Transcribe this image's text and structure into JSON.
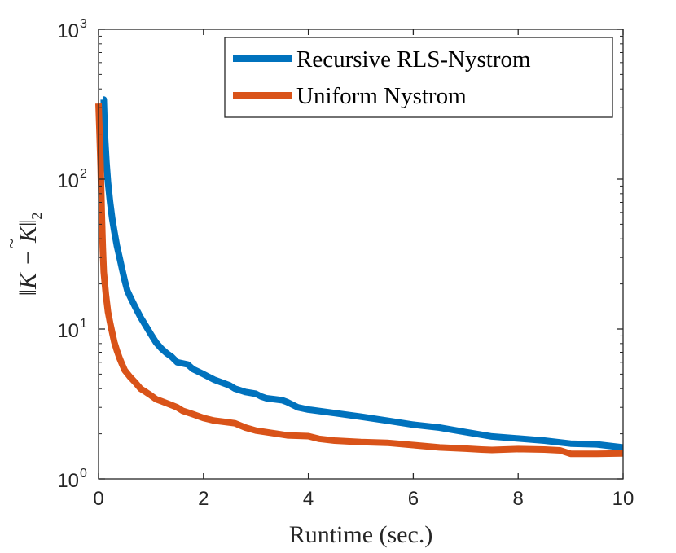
{
  "chart_data": {
    "type": "line",
    "title": "",
    "xlabel": "Runtime (sec.)",
    "ylabel_parts": {
      "K": "K",
      "minus": "−",
      "Ktilde": "K",
      "tilde": "~",
      "norm_left": "‖",
      "norm_right": "‖",
      "subscript": "2"
    },
    "xlim": [
      0,
      10
    ],
    "ylim": [
      1,
      1000
    ],
    "yscale": "log",
    "grid": false,
    "legend_position": "top-right",
    "x_ticks": [
      {
        "value": 0,
        "label": "0"
      },
      {
        "value": 2,
        "label": "2"
      },
      {
        "value": 4,
        "label": "4"
      },
      {
        "value": 6,
        "label": "6"
      },
      {
        "value": 8,
        "label": "8"
      },
      {
        "value": 10,
        "label": "10"
      }
    ],
    "y_ticks": [
      {
        "value": 1,
        "base": "10",
        "exp": "0"
      },
      {
        "value": 10,
        "base": "10",
        "exp": "1"
      },
      {
        "value": 100,
        "base": "10",
        "exp": "2"
      },
      {
        "value": 1000,
        "base": "10",
        "exp": "3"
      }
    ],
    "series": [
      {
        "name": "Recursive RLS-Nystrom",
        "color": "#0072BD",
        "points": [
          [
            0.08,
            340
          ],
          [
            0.1,
            340
          ],
          [
            0.12,
            200
          ],
          [
            0.15,
            130
          ],
          [
            0.18,
            95
          ],
          [
            0.22,
            70
          ],
          [
            0.26,
            55
          ],
          [
            0.3,
            45
          ],
          [
            0.35,
            36
          ],
          [
            0.4,
            30
          ],
          [
            0.45,
            25
          ],
          [
            0.5,
            21
          ],
          [
            0.55,
            18
          ],
          [
            0.6,
            16.5
          ],
          [
            0.7,
            14
          ],
          [
            0.8,
            12
          ],
          [
            0.9,
            10.5
          ],
          [
            1.0,
            9.2
          ],
          [
            1.1,
            8.1
          ],
          [
            1.2,
            7.4
          ],
          [
            1.3,
            6.9
          ],
          [
            1.4,
            6.5
          ],
          [
            1.5,
            6.0
          ],
          [
            1.7,
            5.8
          ],
          [
            1.8,
            5.4
          ],
          [
            2.0,
            5.0
          ],
          [
            2.2,
            4.6
          ],
          [
            2.5,
            4.2
          ],
          [
            2.6,
            4.0
          ],
          [
            2.8,
            3.8
          ],
          [
            3.0,
            3.7
          ],
          [
            3.1,
            3.55
          ],
          [
            3.2,
            3.45
          ],
          [
            3.5,
            3.35
          ],
          [
            3.6,
            3.25
          ],
          [
            3.8,
            3.0
          ],
          [
            4.0,
            2.9
          ],
          [
            4.5,
            2.75
          ],
          [
            5.0,
            2.6
          ],
          [
            5.5,
            2.45
          ],
          [
            6.0,
            2.3
          ],
          [
            6.5,
            2.2
          ],
          [
            7.0,
            2.05
          ],
          [
            7.5,
            1.92
          ],
          [
            8.0,
            1.86
          ],
          [
            8.5,
            1.8
          ],
          [
            9.0,
            1.72
          ],
          [
            9.5,
            1.7
          ],
          [
            10.0,
            1.62
          ]
        ]
      },
      {
        "name": "Uniform Nystrom",
        "color": "#D95319",
        "points": [
          [
            0.0,
            320
          ],
          [
            0.02,
            200
          ],
          [
            0.04,
            120
          ],
          [
            0.06,
            60
          ],
          [
            0.08,
            35
          ],
          [
            0.1,
            24
          ],
          [
            0.14,
            17
          ],
          [
            0.18,
            13
          ],
          [
            0.22,
            11
          ],
          [
            0.26,
            9.5
          ],
          [
            0.3,
            8.2
          ],
          [
            0.35,
            7.2
          ],
          [
            0.4,
            6.4
          ],
          [
            0.45,
            5.8
          ],
          [
            0.5,
            5.3
          ],
          [
            0.6,
            4.8
          ],
          [
            0.7,
            4.4
          ],
          [
            0.8,
            4.0
          ],
          [
            0.9,
            3.8
          ],
          [
            1.0,
            3.6
          ],
          [
            1.1,
            3.4
          ],
          [
            1.2,
            3.3
          ],
          [
            1.4,
            3.1
          ],
          [
            1.5,
            3.0
          ],
          [
            1.6,
            2.85
          ],
          [
            1.8,
            2.7
          ],
          [
            2.0,
            2.55
          ],
          [
            2.2,
            2.45
          ],
          [
            2.4,
            2.4
          ],
          [
            2.6,
            2.35
          ],
          [
            2.8,
            2.2
          ],
          [
            3.0,
            2.1
          ],
          [
            3.4,
            2.0
          ],
          [
            3.6,
            1.95
          ],
          [
            4.0,
            1.93
          ],
          [
            4.2,
            1.85
          ],
          [
            4.5,
            1.8
          ],
          [
            5.0,
            1.76
          ],
          [
            5.5,
            1.74
          ],
          [
            6.0,
            1.68
          ],
          [
            6.5,
            1.62
          ],
          [
            7.0,
            1.59
          ],
          [
            7.3,
            1.57
          ],
          [
            7.5,
            1.56
          ],
          [
            8.0,
            1.58
          ],
          [
            8.5,
            1.57
          ],
          [
            8.8,
            1.55
          ],
          [
            9.0,
            1.47
          ],
          [
            9.5,
            1.47
          ],
          [
            10.0,
            1.48
          ]
        ]
      }
    ]
  }
}
